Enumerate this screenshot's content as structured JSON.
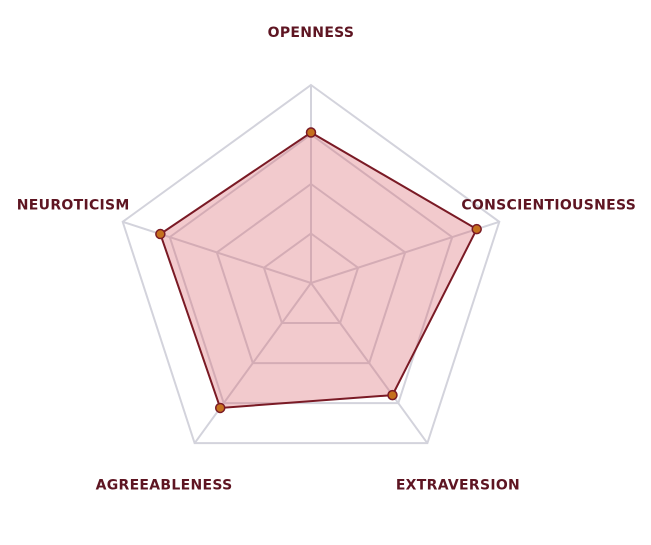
{
  "chart_data": {
    "type": "radar",
    "categories": [
      "OPENNESS",
      "CONSCIENTIOUSNESS",
      "EXTRAVERSION",
      "AGREEABLENESS",
      "NEUROTICISM"
    ],
    "series": [
      {
        "color": "#7a1a25",
        "values": [
          76,
          88,
          70,
          78,
          80
        ]
      }
    ],
    "rlim": [
      0,
      100
    ],
    "rticks": [
      25,
      50,
      75,
      100
    ],
    "grid": true
  }
}
